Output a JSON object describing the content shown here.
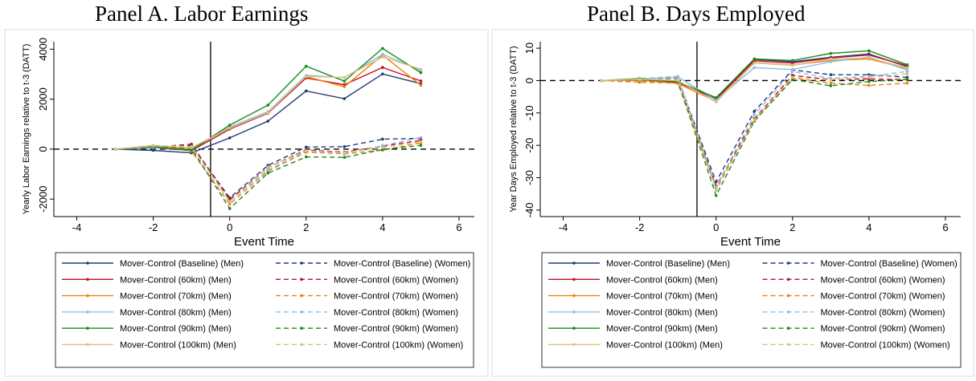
{
  "chart_data": [
    {
      "type": "line",
      "title": "Panel A. Labor Earnings",
      "xlabel": "Event Time",
      "ylabel": "Yearly Labor Earnings relative to t-3 (DATT)",
      "xlim": [
        -4.6,
        6.4
      ],
      "ylim": [
        -2700,
        4300
      ],
      "xticks": [
        -4,
        -2,
        0,
        2,
        4,
        6
      ],
      "yticks": [
        -2000,
        0,
        2000,
        4000
      ],
      "vline": -0.5,
      "hline": 0,
      "grid": false,
      "legend_position": "bottom",
      "x": [
        -3,
        -2,
        -1,
        0,
        1,
        2,
        3,
        4,
        5
      ],
      "series": [
        {
          "name": "Mover-Control (Baseline) (Men)",
          "color": "#1f3b73",
          "dash": false,
          "values": [
            0,
            -50,
            -150,
            450,
            1120,
            2330,
            2020,
            3010,
            2620
          ]
        },
        {
          "name": "Mover-Control (Baseline) (Women)",
          "color": "#1f3b73",
          "dash": true,
          "values": [
            0,
            50,
            150,
            -1950,
            -650,
            80,
            100,
            400,
            430
          ]
        },
        {
          "name": "Mover-Control (60km) (Men)",
          "color": "#c0102b",
          "dash": false,
          "values": [
            0,
            60,
            -60,
            800,
            1440,
            2850,
            2580,
            3270,
            2730
          ]
        },
        {
          "name": "Mover-Control (60km) (Women)",
          "color": "#c0102b",
          "dash": true,
          "values": [
            0,
            80,
            200,
            -2020,
            -730,
            -30,
            -120,
            120,
            350
          ]
        },
        {
          "name": "Mover-Control (70km) (Men)",
          "color": "#f07f0a",
          "dash": false,
          "values": [
            0,
            90,
            0,
            880,
            1480,
            2900,
            2500,
            3760,
            2560
          ]
        },
        {
          "name": "Mover-Control (70km) (Women)",
          "color": "#f07f0a",
          "dash": true,
          "values": [
            0,
            140,
            -80,
            -2200,
            -880,
            -120,
            -190,
            -40,
            250
          ]
        },
        {
          "name": "Mover-Control (80km) (Men)",
          "color": "#8bbde6",
          "dash": false,
          "values": [
            0,
            70,
            -20,
            880,
            1500,
            2950,
            2860,
            3800,
            3150
          ]
        },
        {
          "name": "Mover-Control (80km) (Women)",
          "color": "#8bbde6",
          "dash": true,
          "values": [
            0,
            60,
            80,
            -2100,
            -820,
            -80,
            -170,
            140,
            470
          ]
        },
        {
          "name": "Mover-Control (90km) (Men)",
          "color": "#1a8a1a",
          "dash": false,
          "values": [
            0,
            110,
            -40,
            960,
            1760,
            3320,
            2720,
            4030,
            3060
          ]
        },
        {
          "name": "Mover-Control (90km) (Women)",
          "color": "#1a8a1a",
          "dash": true,
          "values": [
            0,
            100,
            30,
            -2380,
            -960,
            -310,
            -330,
            -20,
            150
          ]
        },
        {
          "name": "Mover-Control (100km) (Men)",
          "color": "#d9c27e",
          "dash": false,
          "values": [
            0,
            140,
            60,
            840,
            1460,
            2910,
            2870,
            3690,
            3200
          ]
        },
        {
          "name": "Mover-Control (100km) (Women)",
          "color": "#d9c27e",
          "dash": true,
          "values": [
            0,
            150,
            100,
            -2100,
            -720,
            -60,
            -140,
            60,
            300
          ]
        }
      ]
    },
    {
      "type": "line",
      "title": "Panel B. Days Employed",
      "xlabel": "Event Time",
      "ylabel": "Year Days Employed relative to t-3 (DATT)",
      "xlim": [
        -4.6,
        6.4
      ],
      "ylim": [
        -42,
        12
      ],
      "xticks": [
        -4,
        -2,
        0,
        2,
        4,
        6
      ],
      "yticks": [
        -40,
        -30,
        -20,
        -10,
        0,
        10
      ],
      "vline": -0.5,
      "hline": 0,
      "grid": false,
      "legend_position": "bottom",
      "x": [
        -3,
        -2,
        -1,
        0,
        1,
        2,
        3,
        4,
        5
      ],
      "series": [
        {
          "name": "Mover-Control (Baseline) (Men)",
          "color": "#1f3b73",
          "dash": false,
          "values": [
            0,
            0.2,
            -0.4,
            -5.5,
            6.5,
            5.8,
            7.2,
            8.2,
            4.3
          ]
        },
        {
          "name": "Mover-Control (Baseline) (Women)",
          "color": "#1f3b73",
          "dash": true,
          "values": [
            0,
            0.3,
            0.6,
            -31.3,
            -9.5,
            3.3,
            1.8,
            1.8,
            1.0
          ]
        },
        {
          "name": "Mover-Control (60km) (Men)",
          "color": "#c0102b",
          "dash": false,
          "values": [
            0,
            0.1,
            -0.5,
            -5.8,
            6.1,
            5.4,
            7.0,
            7.9,
            4.6
          ]
        },
        {
          "name": "Mover-Control (60km) (Women)",
          "color": "#c0102b",
          "dash": true,
          "values": [
            0,
            -0.5,
            -0.3,
            -32.6,
            -11.8,
            1.6,
            0.3,
            0.5,
            0.3
          ]
        },
        {
          "name": "Mover-Control (70km) (Men)",
          "color": "#f07f0a",
          "dash": false,
          "values": [
            0,
            0.1,
            -0.9,
            -6.4,
            5.5,
            4.8,
            6.2,
            6.7,
            3.7
          ]
        },
        {
          "name": "Mover-Control (70km) (Women)",
          "color": "#f07f0a",
          "dash": true,
          "values": [
            0,
            -0.5,
            -0.8,
            -33.2,
            -12.6,
            0.8,
            -0.8,
            -1.5,
            -0.8
          ]
        },
        {
          "name": "Mover-Control (80km) (Men)",
          "color": "#8bbde6",
          "dash": false,
          "values": [
            0,
            0.4,
            1.1,
            -6.0,
            4.0,
            3.4,
            5.8,
            7.3,
            3.2
          ]
        },
        {
          "name": "Mover-Control (80km) (Women)",
          "color": "#8bbde6",
          "dash": true,
          "values": [
            0,
            0.6,
            1.3,
            -33.0,
            -10.5,
            2.8,
            0.7,
            1.3,
            2.8
          ]
        },
        {
          "name": "Mover-Control (90km) (Men)",
          "color": "#1a8a1a",
          "dash": false,
          "values": [
            0,
            0.6,
            -0.3,
            -5.3,
            6.7,
            6.2,
            8.4,
            9.2,
            4.9
          ]
        },
        {
          "name": "Mover-Control (90km) (Women)",
          "color": "#1a8a1a",
          "dash": true,
          "values": [
            0,
            0.2,
            -0.3,
            -35.5,
            -12.5,
            0.3,
            -1.6,
            -0.3,
            0.4
          ]
        },
        {
          "name": "Mover-Control (100km) (Men)",
          "color": "#d9c27e",
          "dash": false,
          "values": [
            0,
            0.4,
            0.0,
            -6.6,
            5.4,
            4.7,
            6.7,
            7.0,
            3.9
          ]
        },
        {
          "name": "Mover-Control (100km) (Women)",
          "color": "#d9c27e",
          "dash": true,
          "values": [
            0,
            0.3,
            0.4,
            -34.1,
            -12.1,
            1.0,
            0.2,
            1.0,
            2.1
          ]
        }
      ]
    }
  ]
}
